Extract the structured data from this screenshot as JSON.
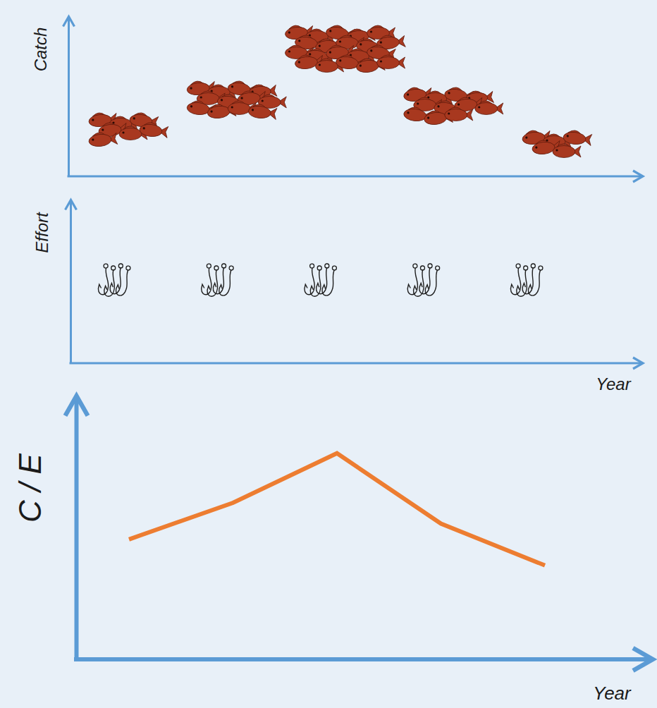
{
  "chart_data": [
    {
      "type": "pictogram",
      "marker": "fish",
      "y_label": "Catch",
      "categories": [
        null,
        null,
        null,
        null,
        null
      ],
      "values": [
        7,
        12,
        20,
        11,
        5
      ],
      "ylim": [
        0,
        25
      ],
      "color": "#a8381f",
      "tick_labels": false
    },
    {
      "type": "pictogram",
      "marker": "hook",
      "y_label": "Effort",
      "x_label": "Year",
      "categories": [
        null,
        null,
        null,
        null,
        null
      ],
      "values": [
        4,
        4,
        4,
        4,
        4
      ],
      "ylim": [
        0,
        8
      ],
      "color": "#1f1f1f",
      "tick_labels": false
    },
    {
      "type": "line",
      "y_label": "C / E",
      "x_label": "Year",
      "categories": [
        null,
        null,
        null,
        null,
        null
      ],
      "values": [
        4.6,
        6.0,
        7.9,
        5.2,
        3.6
      ],
      "ylim": [
        0,
        10
      ],
      "color": "#ed7d31",
      "tick_labels": false
    }
  ]
}
